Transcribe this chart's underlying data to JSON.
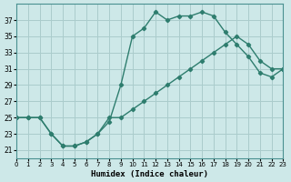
{
  "xlabel": "Humidex (Indice chaleur)",
  "bg_color": "#cde8e8",
  "line_color": "#2e7d6e",
  "grid_color": "#aacccc",
  "ylim": [
    20,
    39
  ],
  "xlim": [
    0,
    23
  ],
  "yticks": [
    21,
    23,
    25,
    27,
    29,
    31,
    33,
    35,
    37
  ],
  "xticks": [
    0,
    1,
    2,
    3,
    4,
    5,
    6,
    7,
    8,
    9,
    10,
    11,
    12,
    13,
    14,
    15,
    16,
    17,
    18,
    19,
    20,
    21,
    22,
    23
  ],
  "line1_x": [
    0,
    1,
    2,
    3,
    4,
    5,
    6,
    7,
    8,
    9,
    10,
    11,
    12,
    13,
    14,
    15,
    16,
    17,
    18,
    19,
    20,
    21,
    22,
    23
  ],
  "line1_y": [
    25,
    25,
    25,
    23,
    21.5,
    21.5,
    22,
    23,
    24.5,
    29,
    35,
    36,
    38,
    37,
    37.5,
    37.5,
    38,
    37.5,
    35.5,
    34,
    32.5,
    30.5,
    30,
    31
  ],
  "line2_x": [
    0,
    1,
    2,
    3,
    4,
    5,
    6,
    7,
    8,
    9,
    10,
    11,
    12,
    13,
    14,
    15,
    16,
    17,
    18,
    19,
    20,
    21,
    22,
    23
  ],
  "line2_y": [
    25,
    25,
    25,
    23,
    21.5,
    21.5,
    22,
    23,
    25,
    25,
    26,
    27,
    28,
    29,
    30,
    31,
    32,
    33,
    34,
    35,
    34,
    32,
    31,
    31
  ]
}
